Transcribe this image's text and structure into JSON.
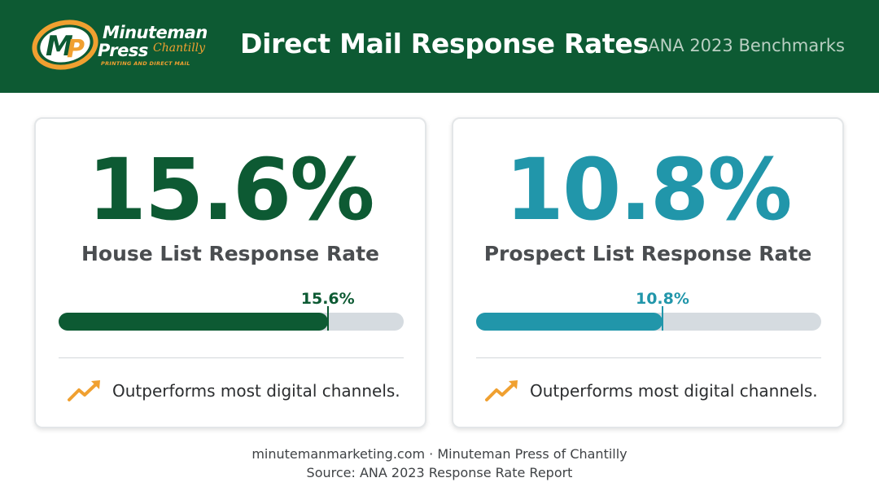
{
  "header": {
    "logo": {
      "word1": "Minuteman",
      "word2": "Press",
      "script": "Chantilly",
      "tagline": "PRINTING AND DIRECT MAIL"
    },
    "title": "Direct Mail Response Rates",
    "subtitle": "ANA 2023 Benchmarks"
  },
  "colors": {
    "header_bg": "#0d5a33",
    "house": "#0d5a33",
    "prospect": "#2196aa",
    "track": "#d5dbe0",
    "accent": "#f0a030"
  },
  "chart_data": {
    "type": "bar",
    "orientation": "horizontal",
    "xlim": [
      0,
      20
    ],
    "categories": [
      "House List Response Rate",
      "Prospect List Response Rate"
    ],
    "values": [
      15.6,
      10.8
    ],
    "cards": [
      {
        "big_value": "15.6%",
        "label": "House List Response Rate",
        "value": 15.6,
        "bar_label": "15.6%",
        "note": "Outperforms most digital channels.",
        "icon": "trending-up-icon"
      },
      {
        "big_value": "10.8%",
        "label": "Prospect List Response Rate",
        "value": 10.8,
        "bar_label": "10.8%",
        "note": "Outperforms most digital channels.",
        "icon": "trending-up-icon"
      }
    ]
  },
  "footer": {
    "line1": "minutemanmarketing.com · Minuteman Press of Chantilly",
    "line2": "Source: ANA 2023 Response Rate Report"
  }
}
